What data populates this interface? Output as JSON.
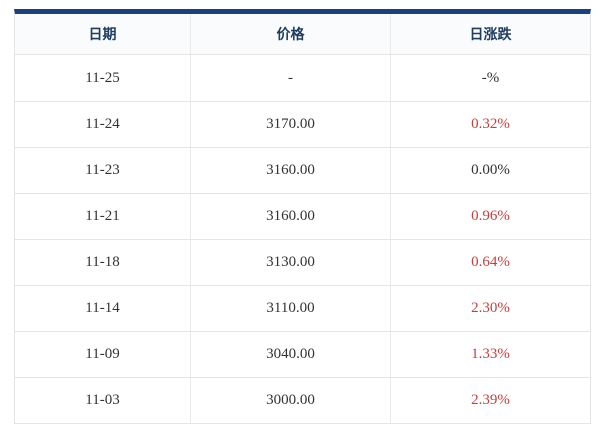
{
  "table": {
    "columns": [
      {
        "key": "date",
        "label": "日期"
      },
      {
        "key": "price",
        "label": "价格"
      },
      {
        "key": "change",
        "label": "日涨跌"
      }
    ],
    "rows": [
      {
        "date": "11-25",
        "price": "-",
        "change": "-%",
        "trend": "flat"
      },
      {
        "date": "11-24",
        "price": "3170.00",
        "change": "0.32%",
        "trend": "up"
      },
      {
        "date": "11-23",
        "price": "3160.00",
        "change": "0.00%",
        "trend": "flat"
      },
      {
        "date": "11-21",
        "price": "3160.00",
        "change": "0.96%",
        "trend": "up"
      },
      {
        "date": "11-18",
        "price": "3130.00",
        "change": "0.64%",
        "trend": "up"
      },
      {
        "date": "11-14",
        "price": "3110.00",
        "change": "2.30%",
        "trend": "up"
      },
      {
        "date": "11-09",
        "price": "3040.00",
        "change": "1.33%",
        "trend": "up"
      },
      {
        "date": "11-03",
        "price": "3000.00",
        "change": "2.39%",
        "trend": "up"
      }
    ]
  },
  "colors": {
    "top_border_navy": "#1a4080",
    "header_text": "#1f3d62",
    "header_background": "#fafbfc",
    "body_text": "#333333",
    "up_change_red": "#c5403c",
    "grid_line": "#e5e5e5"
  },
  "chart_data": {
    "type": "table",
    "columns": [
      "日期",
      "价格",
      "日涨跌"
    ],
    "rows": [
      [
        "11-25",
        "-",
        "-%"
      ],
      [
        "11-24",
        "3170.00",
        "0.32%"
      ],
      [
        "11-23",
        "3160.00",
        "0.00%"
      ],
      [
        "11-21",
        "3160.00",
        "0.96%"
      ],
      [
        "11-18",
        "3130.00",
        "0.64%"
      ],
      [
        "11-14",
        "3110.00",
        "2.30%"
      ],
      [
        "11-09",
        "3040.00",
        "1.33%"
      ],
      [
        "11-03",
        "3000.00",
        "2.39%"
      ]
    ]
  }
}
